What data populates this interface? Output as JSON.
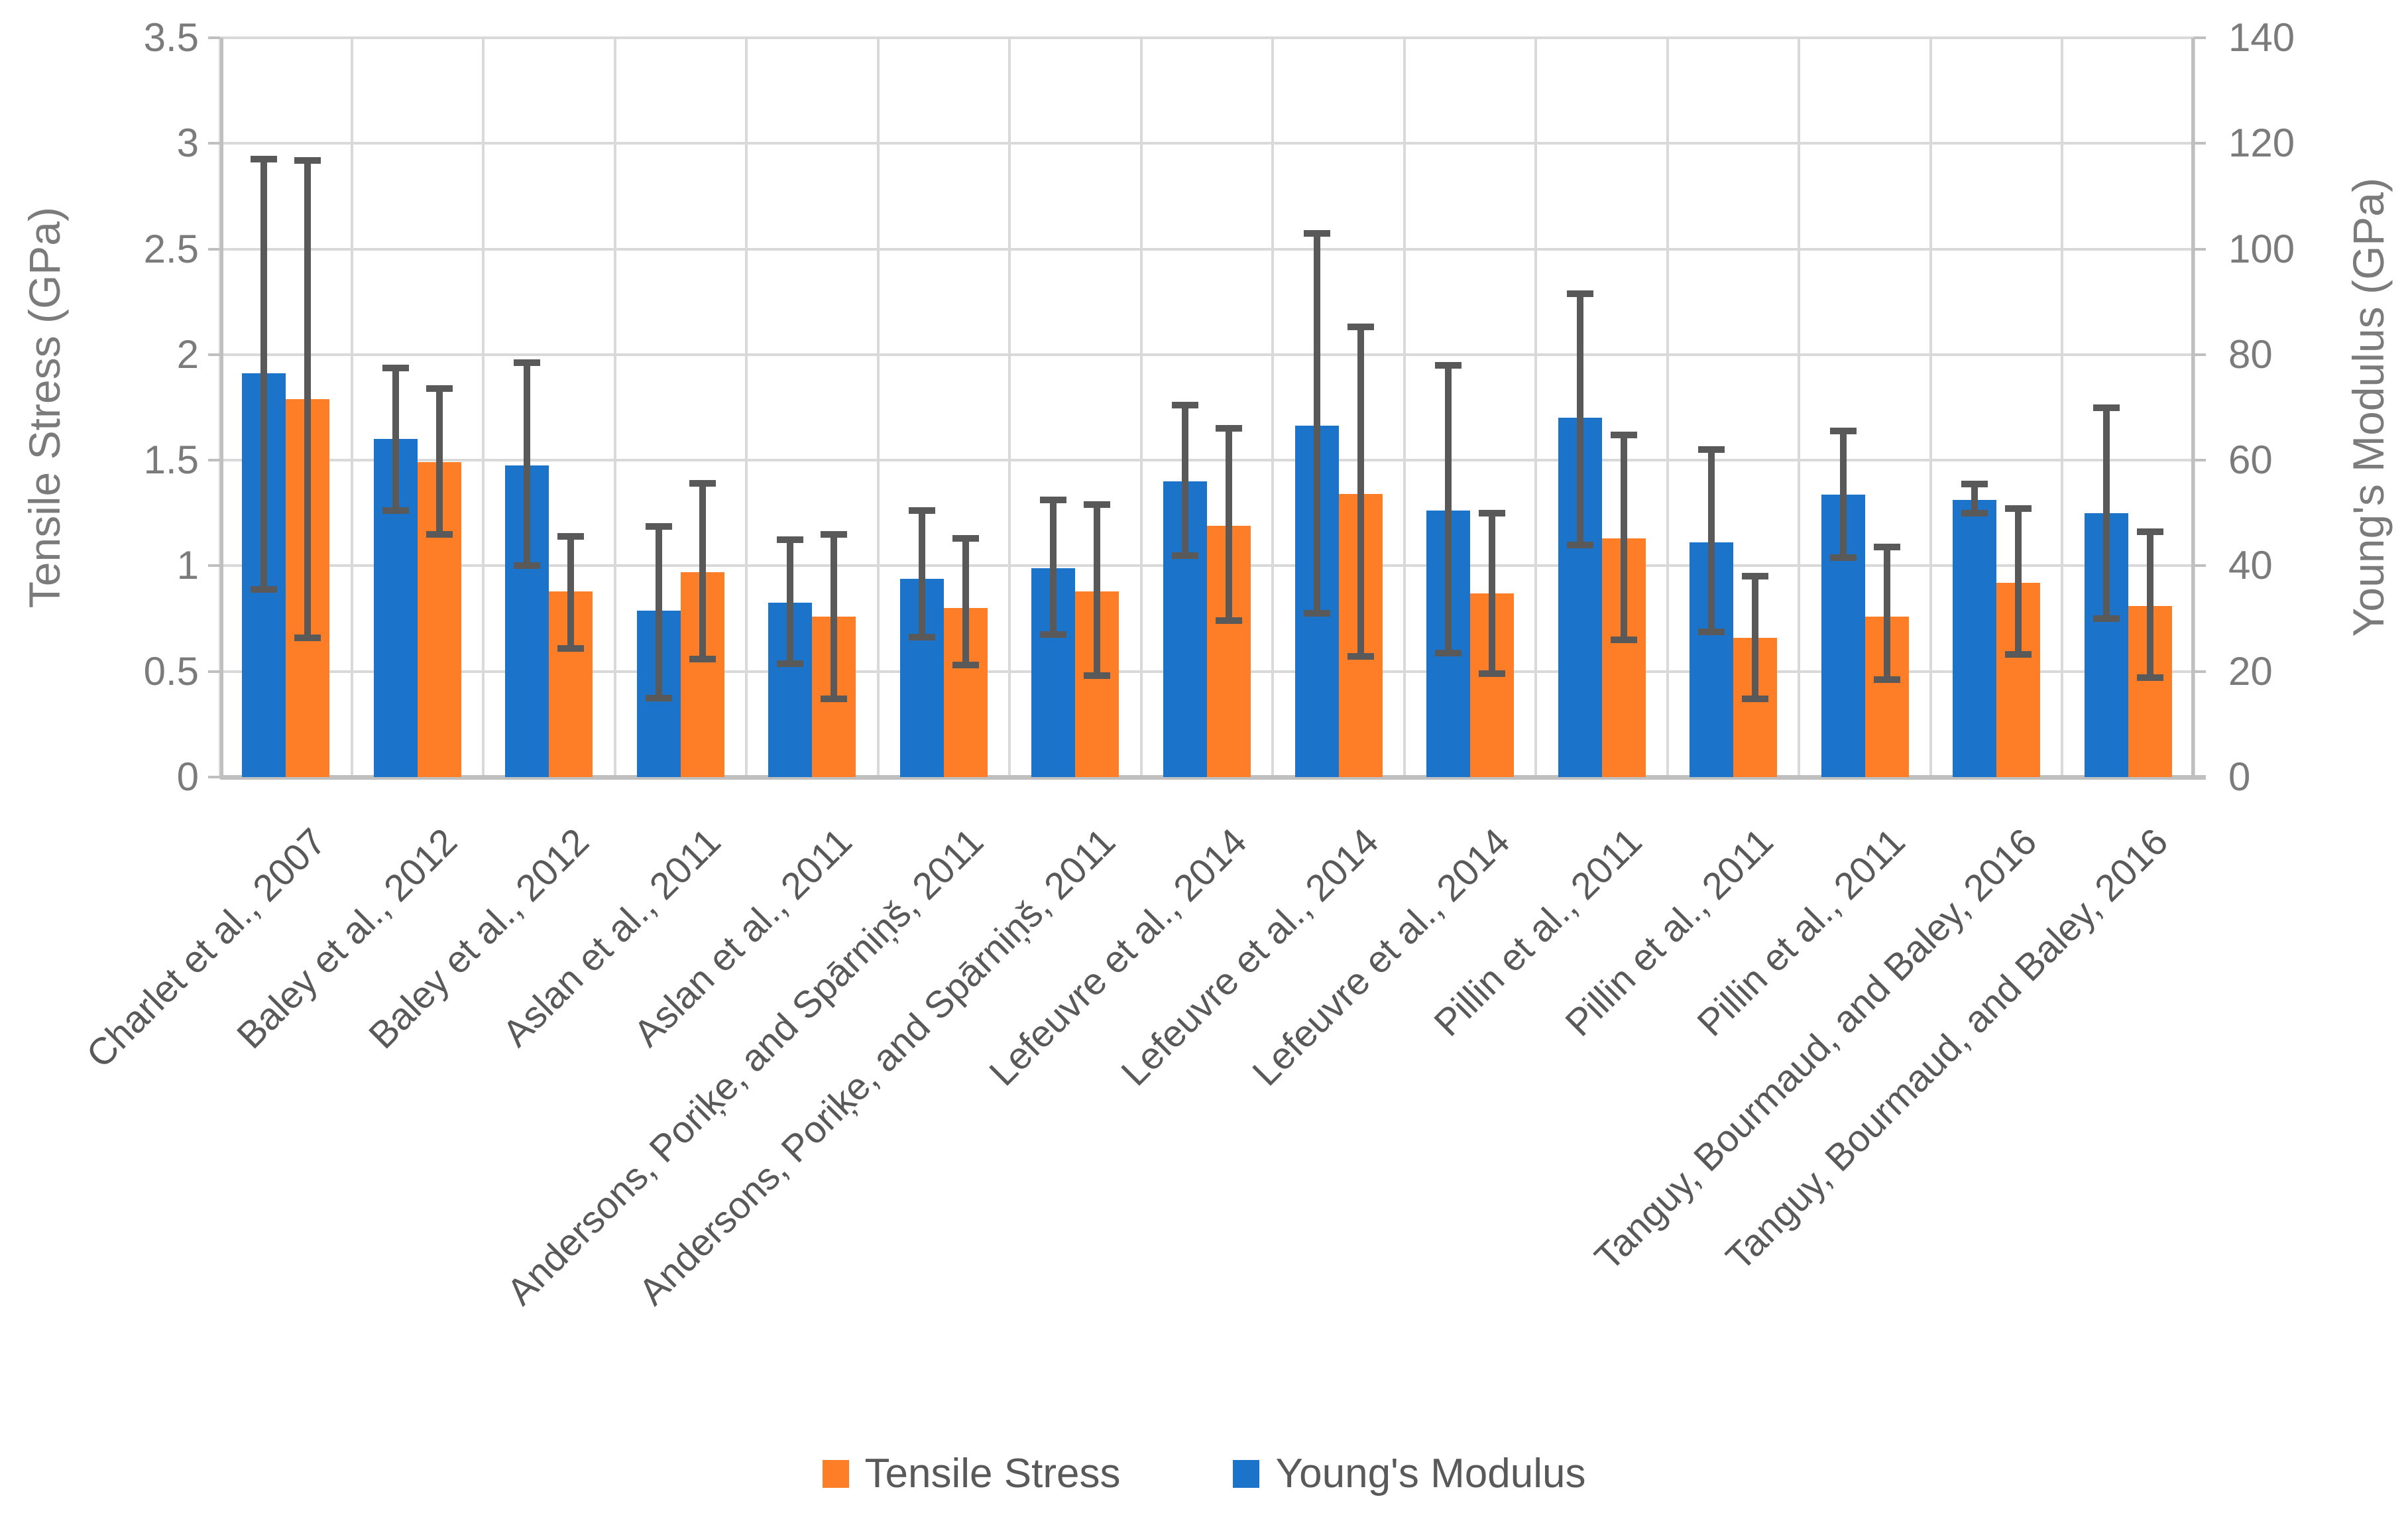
{
  "chart_data": {
    "type": "bar",
    "title": "",
    "categories": [
      "Charlet et al., 2007",
      "Baley et al., 2012",
      "Baley et al., 2012",
      "Aslan et al., 2011",
      "Aslan et al., 2011",
      "Andersons, Poriķe, and Spārniņš, 2011",
      "Andersons, Poriķe, and Spārniņš, 2011",
      "Lefeuvre et al., 2014",
      "Lefeuvre et al., 2014",
      "Lefeuvre et al., 2014",
      "Pillin et al., 2011",
      "Pillin et al., 2011",
      "Pillin et al., 2011",
      "Tanguy, Bourmaud, and Baley, 2016",
      "Tanguy, Bourmaud, and Baley, 2016"
    ],
    "series": [
      {
        "name": "Young's Modulus",
        "axis": "right",
        "color": "#1B74C9",
        "values": [
          76.5,
          64,
          59,
          31.5,
          33,
          37.5,
          39.5,
          56,
          66.5,
          50.5,
          68,
          44.5,
          53.5,
          52.5,
          50
        ],
        "err_low": [
          35.5,
          50.5,
          40,
          15,
          21.5,
          26.5,
          27,
          42,
          31,
          23.5,
          44,
          27.5,
          41.5,
          50,
          30
        ],
        "err_high": [
          117,
          77.5,
          78.5,
          47.5,
          45,
          50.5,
          52.5,
          70.5,
          103,
          78,
          91.5,
          62,
          65.5,
          55.5,
          70
        ]
      },
      {
        "name": "Tensile Stress",
        "axis": "left",
        "color": "#FD7E26",
        "values": [
          1.79,
          1.49,
          0.88,
          0.97,
          0.76,
          0.8,
          0.88,
          1.19,
          1.34,
          0.87,
          1.13,
          0.66,
          0.76,
          0.92,
          0.81
        ],
        "err_low": [
          0.66,
          1.15,
          0.61,
          0.56,
          0.37,
          0.53,
          0.48,
          0.74,
          0.57,
          0.49,
          0.65,
          0.37,
          0.46,
          0.58,
          0.47
        ],
        "err_high": [
          2.92,
          1.84,
          1.14,
          1.39,
          1.15,
          1.13,
          1.29,
          1.65,
          2.13,
          1.25,
          1.62,
          0.95,
          1.09,
          1.27,
          1.16
        ]
      }
    ],
    "left_axis": {
      "title": "Tensile Stress (GPa)",
      "min": 0,
      "max": 3.5,
      "step": 0.5,
      "tick_labels": [
        "3.5",
        "3",
        "2.5",
        "2",
        "1.5",
        "1",
        "0.5",
        "0"
      ]
    },
    "right_axis": {
      "title": "Young's Modulus (GPa)",
      "min": 0,
      "max": 140,
      "step": 20,
      "tick_labels": [
        "140",
        "120",
        "100",
        "80",
        "60",
        "40",
        "20",
        "0"
      ]
    },
    "legend": {
      "position": "bottom",
      "items": [
        {
          "label": "Tensile Stress",
          "color": "#FD7E26"
        },
        {
          "label": "Young's Modulus",
          "color": "#1B74C9"
        }
      ]
    },
    "grid": true,
    "colors": {
      "gridline": "#D9D9D9",
      "axis_line": "#BFBFBF",
      "error_bar": "#595959",
      "tick_label": "#7B7B7B",
      "category_label": "#595959",
      "background": "#FFFFFF"
    }
  }
}
